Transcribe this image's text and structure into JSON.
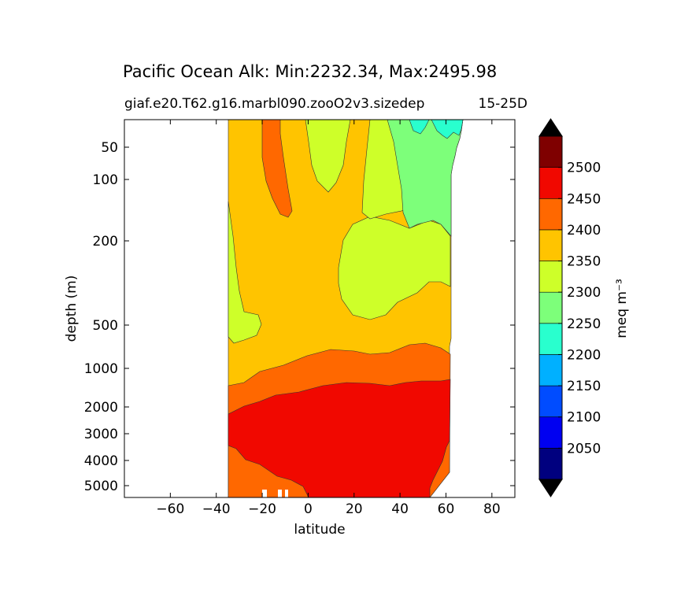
{
  "chart_data": {
    "type": "contourf",
    "title": "Pacific Ocean Alk: Min:2232.34, Max:2495.98",
    "subtitle_left": "giaf.e20.T62.g16.marbl090.zooO2v3.sizedep",
    "subtitle_right": "15-25D",
    "xlabel": "latitude",
    "ylabel": "depth (m)",
    "xlim": [
      -80,
      90
    ],
    "x_ticks": [
      -60,
      -40,
      -20,
      0,
      20,
      40,
      60,
      80
    ],
    "x_tick_labels": [
      "−60",
      "−40",
      "−20",
      "0",
      "20",
      "40",
      "60",
      "80"
    ],
    "y_ticks": [
      50,
      100,
      200,
      500,
      1000,
      2000,
      3000,
      4000,
      5000
    ],
    "y_tick_labels": [
      "50",
      "100",
      "200",
      "500",
      "1000",
      "2000",
      "3000",
      "4000",
      "5000"
    ],
    "y_inverted": true,
    "colorbar": {
      "label": "meq m⁻³",
      "levels": [
        2000,
        2050,
        2100,
        2150,
        2200,
        2250,
        2300,
        2350,
        2400,
        2450,
        2500,
        2550
      ],
      "tick_labels": [
        "2050",
        "2100",
        "2150",
        "2200",
        "2250",
        "2300",
        "2350",
        "2400",
        "2450",
        "2500"
      ],
      "colors": [
        "#00007f",
        "#0000f1",
        "#004cff",
        "#00b0ff",
        "#29ffce",
        "#7dff7a",
        "#ceff29",
        "#ffc400",
        "#ff6800",
        "#f10800",
        "#7f0000"
      ],
      "extend": "both",
      "under_color": "#000000",
      "over_color": "#000000"
    },
    "regions": [
      {
        "level": 2350,
        "color": "#ffc400",
        "desc": "base 2350-2400 band, upper ocean"
      },
      {
        "level": 2400,
        "color": "#ff6800",
        "desc": "2400-2450 band near 1000 m and bottom south"
      },
      {
        "level": 2450,
        "color": "#f10800",
        "desc": "2450-2500 deep water"
      },
      {
        "level": 2300,
        "color": "#ceff29",
        "desc": "2300-2350 thermocline patches"
      },
      {
        "level": 2250,
        "color": "#7dff7a",
        "desc": "2250-2300 subpolar north"
      },
      {
        "level": 2200,
        "color": "#29ffce",
        "desc": "2200-2250 surface north"
      }
    ]
  }
}
